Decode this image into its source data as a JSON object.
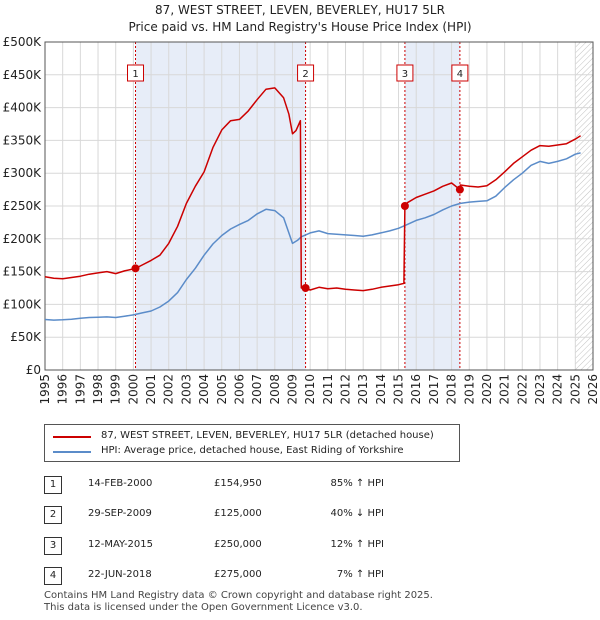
{
  "chart_data": {
    "type": "line",
    "title": "87, WEST STREET, LEVEN, BEVERLEY, HU17 5LR",
    "subtitle": "Price paid vs. HM Land Registry's House Price Index (HPI)",
    "xlabel": "",
    "ylabel": "",
    "xlim": [
      1995,
      2026
    ],
    "ylim": [
      0,
      500000
    ],
    "x_ticks": [
      "1995",
      "1996",
      "1997",
      "1998",
      "1999",
      "2000",
      "2001",
      "2002",
      "2003",
      "2004",
      "2005",
      "2006",
      "2007",
      "2008",
      "2009",
      "2010",
      "2011",
      "2012",
      "2013",
      "2014",
      "2015",
      "2016",
      "2017",
      "2018",
      "2019",
      "2020",
      "2021",
      "2022",
      "2023",
      "2024",
      "2025",
      "2026"
    ],
    "y_ticks": [
      {
        "value": 0,
        "label": "£0"
      },
      {
        "value": 50000,
        "label": "£50K"
      },
      {
        "value": 100000,
        "label": "£100K"
      },
      {
        "value": 150000,
        "label": "£150K"
      },
      {
        "value": 200000,
        "label": "£200K"
      },
      {
        "value": 250000,
        "label": "£250K"
      },
      {
        "value": 300000,
        "label": "£300K"
      },
      {
        "value": 350000,
        "label": "£350K"
      },
      {
        "value": 400000,
        "label": "£400K"
      },
      {
        "value": 450000,
        "label": "£450K"
      },
      {
        "value": 500000,
        "label": "£500K"
      }
    ],
    "grid": true,
    "legend_position": "below-left",
    "future_data_from": 2025.0,
    "series": [
      {
        "name": "87, WEST STREET, LEVEN, BEVERLEY, HU17 5LR (detached house)",
        "color": "#cc0000",
        "points": [
          [
            1995.0,
            142000
          ],
          [
            1995.5,
            140000
          ],
          [
            1996.0,
            139000
          ],
          [
            1996.5,
            141000
          ],
          [
            1997.0,
            143000
          ],
          [
            1997.5,
            146000
          ],
          [
            1998.0,
            148000
          ],
          [
            1998.5,
            150000
          ],
          [
            1999.0,
            147000
          ],
          [
            1999.5,
            151000
          ],
          [
            2000.12,
            154950
          ],
          [
            2000.5,
            160000
          ],
          [
            2001.0,
            167000
          ],
          [
            2001.5,
            175000
          ],
          [
            2002.0,
            193000
          ],
          [
            2002.5,
            219000
          ],
          [
            2003.0,
            254000
          ],
          [
            2003.5,
            280000
          ],
          [
            2004.0,
            302000
          ],
          [
            2004.5,
            339000
          ],
          [
            2005.0,
            366000
          ],
          [
            2005.5,
            380000
          ],
          [
            2006.0,
            382000
          ],
          [
            2006.5,
            395000
          ],
          [
            2007.0,
            412000
          ],
          [
            2007.5,
            428000
          ],
          [
            2008.0,
            430000
          ],
          [
            2008.5,
            415000
          ],
          [
            2008.8,
            390000
          ],
          [
            2009.0,
            360000
          ],
          [
            2009.2,
            365000
          ],
          [
            2009.45,
            380000
          ],
          [
            2009.5,
            125000
          ],
          [
            2009.74,
            125000
          ],
          [
            2010.0,
            122000
          ],
          [
            2010.5,
            126000
          ],
          [
            2011.0,
            124000
          ],
          [
            2011.5,
            125000
          ],
          [
            2012.0,
            123000
          ],
          [
            2012.5,
            122000
          ],
          [
            2013.0,
            121000
          ],
          [
            2013.5,
            123000
          ],
          [
            2014.0,
            126000
          ],
          [
            2014.5,
            128000
          ],
          [
            2015.0,
            130000
          ],
          [
            2015.3,
            132000
          ],
          [
            2015.36,
            250000
          ],
          [
            2015.5,
            255000
          ],
          [
            2016.0,
            263000
          ],
          [
            2016.5,
            268000
          ],
          [
            2017.0,
            273000
          ],
          [
            2017.5,
            280000
          ],
          [
            2018.0,
            285000
          ],
          [
            2018.47,
            275000
          ],
          [
            2018.5,
            282000
          ],
          [
            2019.0,
            280000
          ],
          [
            2019.5,
            279000
          ],
          [
            2020.0,
            281000
          ],
          [
            2020.5,
            290000
          ],
          [
            2021.0,
            302000
          ],
          [
            2021.5,
            315000
          ],
          [
            2022.0,
            325000
          ],
          [
            2022.5,
            335000
          ],
          [
            2023.0,
            342000
          ],
          [
            2023.5,
            341000
          ],
          [
            2024.0,
            343000
          ],
          [
            2024.5,
            345000
          ],
          [
            2025.0,
            352000
          ],
          [
            2025.3,
            357000
          ]
        ]
      },
      {
        "name": "HPI: Average price, detached house, East Riding of Yorkshire",
        "color": "#5b8cc9",
        "points": [
          [
            1995.0,
            77000
          ],
          [
            1995.5,
            76000
          ],
          [
            1996.0,
            76500
          ],
          [
            1996.5,
            77500
          ],
          [
            1997.0,
            79000
          ],
          [
            1997.5,
            80000
          ],
          [
            1998.0,
            80500
          ],
          [
            1998.5,
            81000
          ],
          [
            1999.0,
            80000
          ],
          [
            1999.5,
            82000
          ],
          [
            2000.0,
            84000
          ],
          [
            2000.5,
            87000
          ],
          [
            2001.0,
            90000
          ],
          [
            2001.5,
            96000
          ],
          [
            2002.0,
            105000
          ],
          [
            2002.5,
            118000
          ],
          [
            2003.0,
            138000
          ],
          [
            2003.5,
            155000
          ],
          [
            2004.0,
            175000
          ],
          [
            2004.5,
            192000
          ],
          [
            2005.0,
            205000
          ],
          [
            2005.5,
            215000
          ],
          [
            2006.0,
            222000
          ],
          [
            2006.5,
            228000
          ],
          [
            2007.0,
            238000
          ],
          [
            2007.5,
            245000
          ],
          [
            2008.0,
            243000
          ],
          [
            2008.5,
            232000
          ],
          [
            2009.0,
            193000
          ],
          [
            2009.3,
            198000
          ],
          [
            2009.5,
            203000
          ],
          [
            2010.0,
            209000
          ],
          [
            2010.5,
            212000
          ],
          [
            2011.0,
            208000
          ],
          [
            2011.5,
            207000
          ],
          [
            2012.0,
            206000
          ],
          [
            2012.5,
            205000
          ],
          [
            2013.0,
            204000
          ],
          [
            2013.5,
            206000
          ],
          [
            2014.0,
            209000
          ],
          [
            2014.5,
            212000
          ],
          [
            2015.0,
            216000
          ],
          [
            2015.5,
            222000
          ],
          [
            2016.0,
            228000
          ],
          [
            2016.5,
            232000
          ],
          [
            2017.0,
            237000
          ],
          [
            2017.5,
            244000
          ],
          [
            2018.0,
            250000
          ],
          [
            2018.5,
            254000
          ],
          [
            2019.0,
            256000
          ],
          [
            2019.5,
            257000
          ],
          [
            2020.0,
            258000
          ],
          [
            2020.5,
            265000
          ],
          [
            2021.0,
            278000
          ],
          [
            2021.5,
            290000
          ],
          [
            2022.0,
            300000
          ],
          [
            2022.5,
            312000
          ],
          [
            2023.0,
            318000
          ],
          [
            2023.5,
            315000
          ],
          [
            2024.0,
            318000
          ],
          [
            2024.5,
            322000
          ],
          [
            2025.0,
            329000
          ],
          [
            2025.3,
            331000
          ]
        ]
      }
    ],
    "sale_markers": [
      {
        "label": "1",
        "x": 2000.12,
        "y": 154950
      },
      {
        "label": "2",
        "x": 2009.74,
        "y": 125000
      },
      {
        "label": "3",
        "x": 2015.36,
        "y": 250000
      },
      {
        "label": "4",
        "x": 2018.47,
        "y": 275000
      }
    ],
    "shaded_spans": [
      [
        2000.12,
        2009.74
      ],
      [
        2015.36,
        2018.47
      ]
    ]
  },
  "legend": {
    "property_label": "87, WEST STREET, LEVEN, BEVERLEY, HU17 5LR (detached house)",
    "hpi_label": "HPI: Average price, detached house, East Riding of Yorkshire"
  },
  "sales": [
    {
      "num": "1",
      "date": "14-FEB-2000",
      "price": "£154,950",
      "hpi": "85% ↑ HPI"
    },
    {
      "num": "2",
      "date": "29-SEP-2009",
      "price": "£125,000",
      "hpi": "40% ↓ HPI"
    },
    {
      "num": "3",
      "date": "12-MAY-2015",
      "price": "£250,000",
      "hpi": "12% ↑ HPI"
    },
    {
      "num": "4",
      "date": "22-JUN-2018",
      "price": "£275,000",
      "hpi": "7% ↑ HPI"
    }
  ],
  "footer": {
    "line1": "Contains HM Land Registry data © Crown copyright and database right 2025.",
    "line2": "This data is licensed under the Open Government Licence v3.0."
  }
}
